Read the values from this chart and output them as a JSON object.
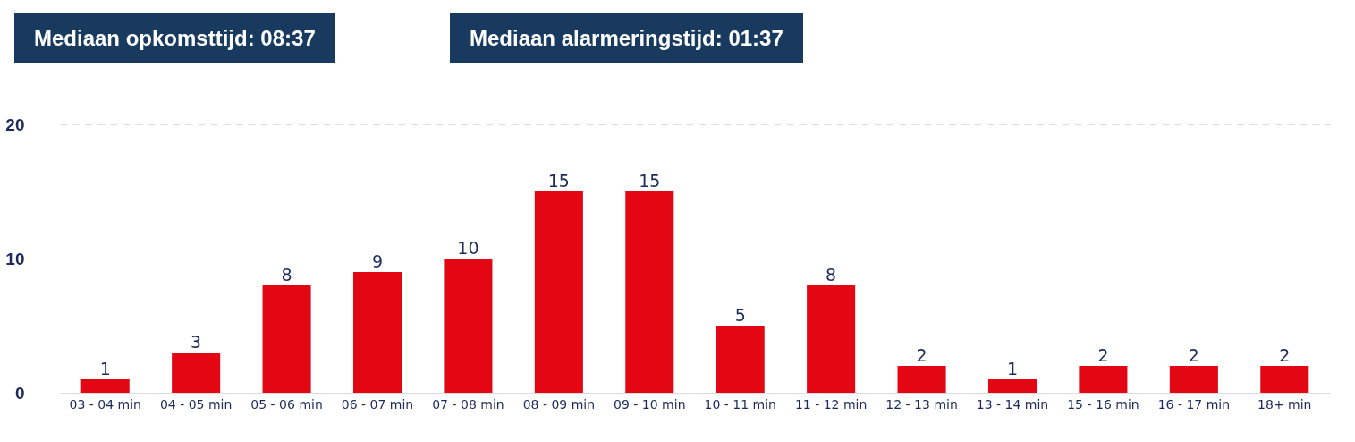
{
  "chart_data": {
    "type": "bar",
    "annotations": [
      "Mediaan opkomsttijd: 08:37",
      "Mediaan alarmeringstijd: 01:37"
    ],
    "categories": [
      "03 - 04 min",
      "04 - 05 min",
      "05 - 06 min",
      "06 - 07 min",
      "07 - 08 min",
      "08 - 09 min",
      "09 - 10 min",
      "10 - 11 min",
      "11 - 12 min",
      "12 - 13 min",
      "13 - 14 min",
      "15 - 16 min",
      "16 - 17 min",
      "18+ min"
    ],
    "values": [
      1,
      3,
      8,
      9,
      10,
      15,
      15,
      5,
      8,
      2,
      1,
      2,
      2,
      2
    ],
    "color": "#e30613",
    "ylim": [
      0,
      20
    ],
    "yticks": [
      0,
      10,
      20
    ],
    "grid": "y",
    "data_labels": true
  }
}
